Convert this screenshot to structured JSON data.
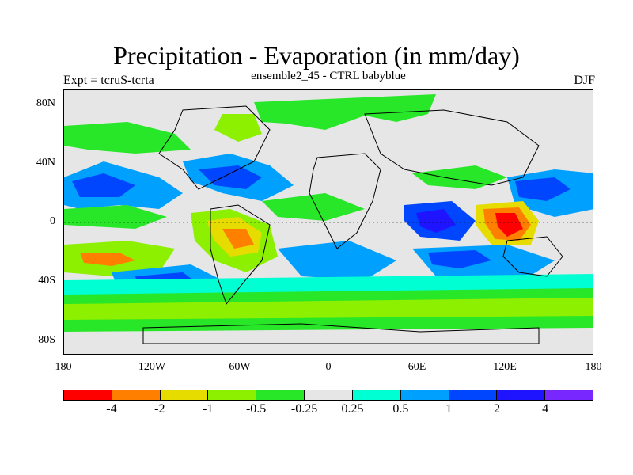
{
  "header": {
    "title": "Precipitation - Evaporation (in mm/day)",
    "expt": "Expt = tcruS-tcrta",
    "subtitle": "ensemble2_45 - CTRL babyblue",
    "season": "DJF"
  },
  "axes": {
    "y_ticks": [
      "80N",
      "40N",
      "0",
      "40S",
      "80S"
    ],
    "x_ticks": [
      "180",
      "120W",
      "60W",
      "0",
      "60E",
      "120E",
      "180"
    ]
  },
  "colorbar": {
    "colors": [
      "#ff0000",
      "#ff8000",
      "#e6dc00",
      "#8cf000",
      "#28e628",
      "#e6e6e6",
      "#00ffd2",
      "#00a0ff",
      "#0046ff",
      "#1e14ff",
      "#7828ff"
    ],
    "labels": [
      "-4",
      "-2",
      "-1",
      "-0.5",
      "-0.25",
      "0.25",
      "0.5",
      "1",
      "2",
      "4"
    ]
  }
}
